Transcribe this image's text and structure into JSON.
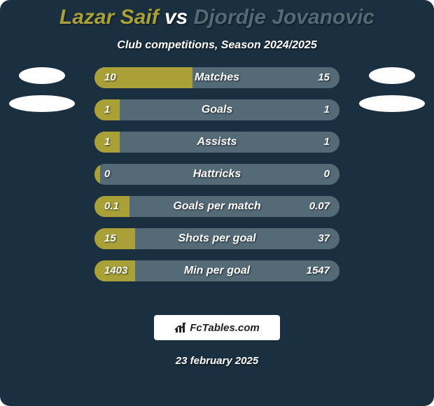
{
  "background_color": "#1a2f3f",
  "title": {
    "p1": {
      "text": "Lazar Saif",
      "color": "#a9a137"
    },
    "vs": {
      "text": " vs ",
      "color": "#ffffff"
    },
    "p2": {
      "text": "Djordje Jovanovic",
      "color": "#546a77"
    }
  },
  "subtitle": "Club competitions, Season 2024/2025",
  "row_bg_color": "#546a77",
  "bar_left_color": "#a9a137",
  "bar_right_color": "#546a77",
  "bar_width_total": 350,
  "stats": [
    {
      "label": "Matches",
      "left_val": "10",
      "right_val": "15",
      "left_w": 140,
      "right_w": 210
    },
    {
      "label": "Goals",
      "left_val": "1",
      "right_val": "1",
      "left_w": 36,
      "right_w": 36
    },
    {
      "label": "Assists",
      "left_val": "1",
      "right_val": "1",
      "left_w": 36,
      "right_w": 36
    },
    {
      "label": "Hattricks",
      "left_val": "0",
      "right_val": "0",
      "left_w": 8,
      "right_w": 8
    },
    {
      "label": "Goals per match",
      "left_val": "0.1",
      "right_val": "0.07",
      "left_w": 50,
      "right_w": 36
    },
    {
      "label": "Shots per goal",
      "left_val": "15",
      "right_val": "37",
      "left_w": 58,
      "right_w": 148
    },
    {
      "label": "Min per goal",
      "left_val": "1403",
      "right_val": "1547",
      "left_w": 58,
      "right_w": 66
    }
  ],
  "brand": "FcTables.com",
  "date": "23 february 2025"
}
